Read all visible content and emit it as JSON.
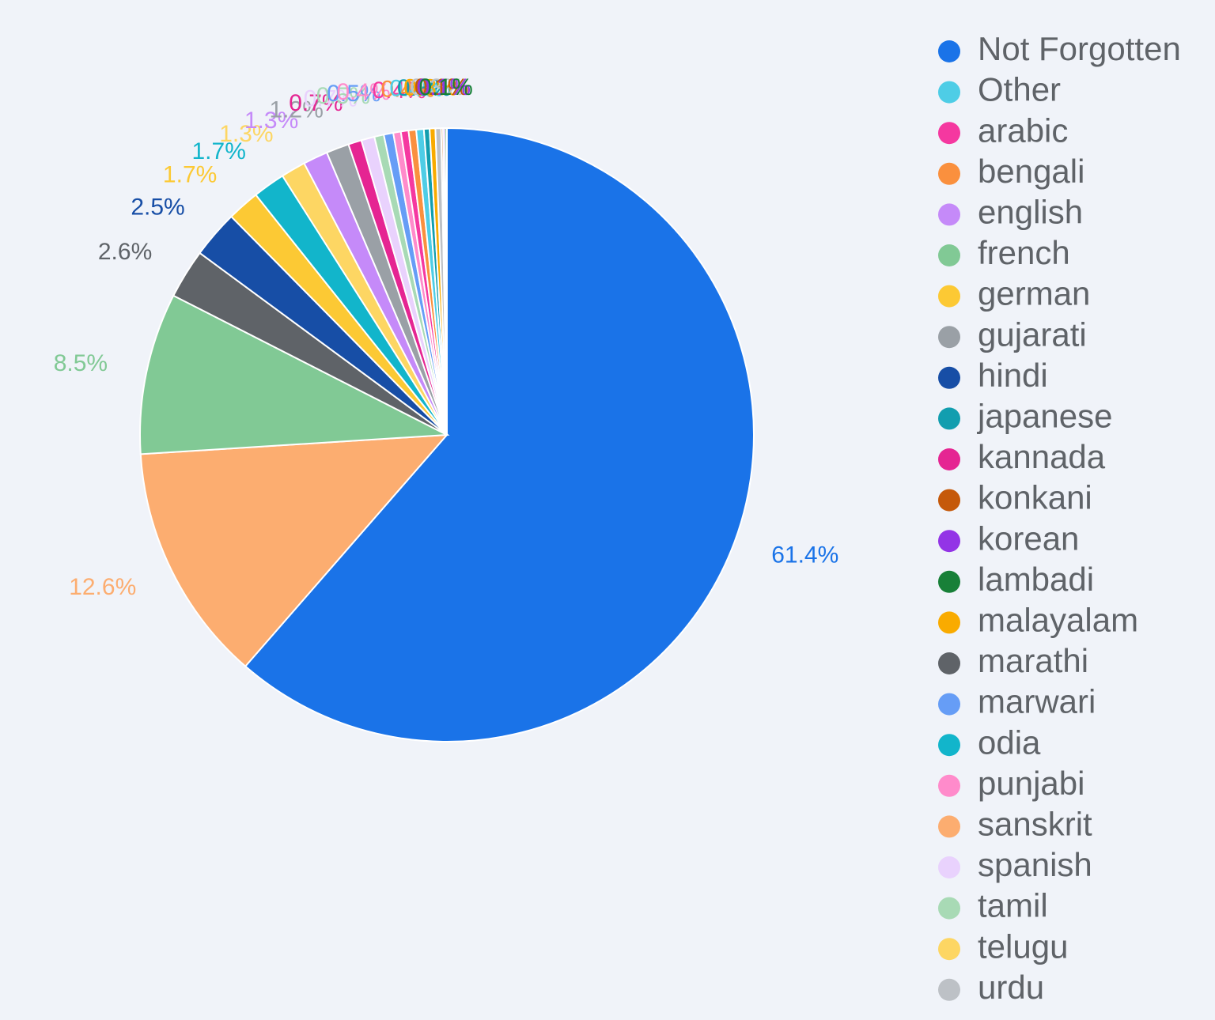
{
  "chart_data": {
    "type": "pie",
    "categories": [
      "Not Forgotten",
      "sanskrit",
      "french",
      "marathi",
      "hindi",
      "german",
      "odia",
      "telugu",
      "english",
      "gujarati",
      "kannada",
      "spanish",
      "tamil",
      "marwari",
      "punjabi",
      "arabic",
      "bengali",
      "Other",
      "japanese",
      "malayalam",
      "urdu",
      "konkani",
      "korean",
      "lambadi"
    ],
    "values": [
      61.4,
      12.6,
      8.5,
      2.6,
      2.5,
      1.7,
      1.7,
      1.3,
      1.3,
      1.2,
      0.7,
      0.7,
      0.5,
      0.5,
      0.4,
      0.4,
      0.4,
      0.4,
      0.3,
      0.3,
      0.3,
      0.1,
      0.1,
      0.1
    ],
    "value_labels": [
      "61.4%",
      "12.6%",
      "8.5%",
      "2.6%",
      "2.5%",
      "1.7%",
      "1.7%",
      "1.3%",
      "1.3%",
      "1.2%",
      "0.7%",
      "0.7%",
      "0.5%",
      "0.5%",
      "0.4%",
      "0.4%",
      "0.4%",
      "0.4%",
      "0.3%",
      "0.3%",
      "0.3%",
      "0.1%",
      "0.1%",
      "0.1%"
    ],
    "colors": [
      "#1a73e8",
      "#fcad70",
      "#81c995",
      "#5f6368",
      "#174ea6",
      "#fcc934",
      "#12b5cb",
      "#fdd663",
      "#c58af9",
      "#9aa0a6",
      "#e52592",
      "#e9d2fd",
      "#a8dab5",
      "#669df6",
      "#ff8bcb",
      "#f538a0",
      "#fa903e",
      "#4ecde6",
      "#129eaf",
      "#f9ab00",
      "#bdc1c6",
      "#c5590a",
      "#9334e6",
      "#188038"
    ],
    "legend": "right"
  }
}
